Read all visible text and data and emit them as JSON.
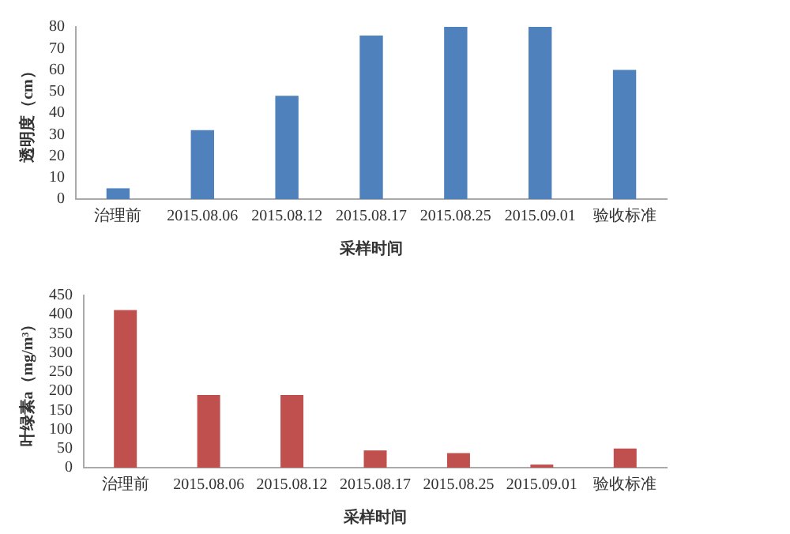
{
  "chart_data": [
    {
      "type": "bar",
      "categories": [
        "治理前",
        "2015.08.06",
        "2015.08.12",
        "2015.08.17",
        "2015.08.25",
        "2015.09.01",
        "验收标准"
      ],
      "values": [
        5,
        32,
        48,
        76,
        80,
        80,
        60
      ],
      "color": "#4f81bd",
      "xlabel": "采样时间",
      "ylabel": "透明度（cm）",
      "ylim": [
        0,
        80
      ],
      "yticks": [
        0,
        10,
        20,
        30,
        40,
        50,
        60,
        70,
        80
      ],
      "grid": false,
      "legend": false
    },
    {
      "type": "bar",
      "categories": [
        "治理前",
        "2015.08.06",
        "2015.08.12",
        "2015.08.17",
        "2015.08.25",
        "2015.09.01",
        "验收标准"
      ],
      "values": [
        412,
        190,
        190,
        45,
        38,
        8,
        50
      ],
      "color": "#c0504d",
      "xlabel": "采样时间",
      "ylabel": "叶绿素a（mg/m³）",
      "ylim": [
        0,
        450
      ],
      "yticks": [
        0,
        50,
        100,
        150,
        200,
        250,
        300,
        350,
        400,
        450
      ],
      "grid": false,
      "legend": false
    }
  ]
}
